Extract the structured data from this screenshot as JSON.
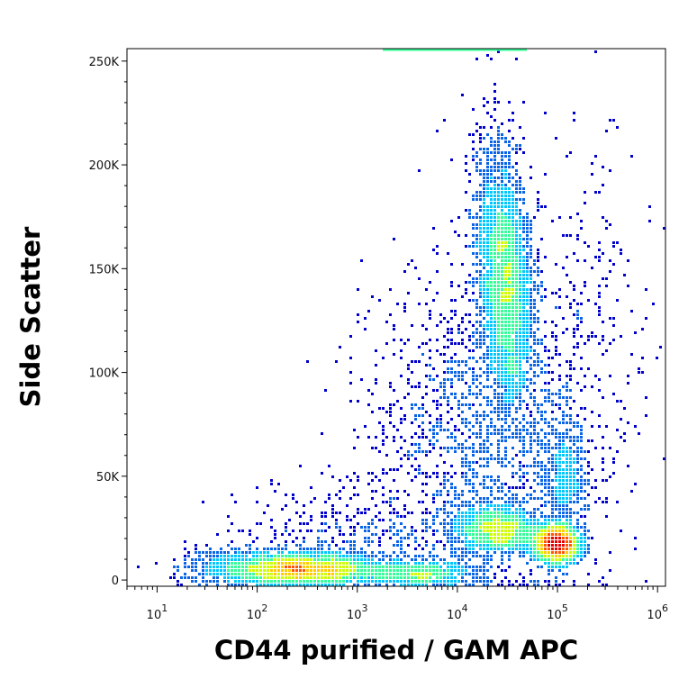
{
  "chart_data": {
    "type": "scatter",
    "title": "",
    "xlabel": "CD44 purified / GAM APC",
    "ylabel": "Side Scatter",
    "x_scale": "log",
    "xlim": [
      5,
      1200000
    ],
    "ylim": [
      -3000,
      256000
    ],
    "grid": false,
    "x_ticks": [
      {
        "value": 10,
        "base": "10",
        "exp": "1"
      },
      {
        "value": 100,
        "base": "10",
        "exp": "2"
      },
      {
        "value": 1000,
        "base": "10",
        "exp": "3"
      },
      {
        "value": 10000,
        "base": "10",
        "exp": "4"
      },
      {
        "value": 100000,
        "base": "10",
        "exp": "5"
      },
      {
        "value": 1000000,
        "base": "10",
        "exp": "6"
      }
    ],
    "y_ticks": [
      {
        "value": 0,
        "label": "0"
      },
      {
        "value": 50000,
        "label": "50K"
      },
      {
        "value": 100000,
        "label": "100K"
      },
      {
        "value": 150000,
        "label": "150K"
      },
      {
        "value": 200000,
        "label": "200K"
      },
      {
        "value": 250000,
        "label": "250K"
      }
    ],
    "density_colormap": [
      "#0000cc",
      "#0a64e6",
      "#00c8ff",
      "#33ff99",
      "#ccff00",
      "#ffcc00",
      "#ff5500",
      "#e60000"
    ],
    "populations": [
      {
        "x_center": 250,
        "y_center": 5000,
        "points": 2600,
        "color_peak": "#e60000"
      },
      {
        "x_center": 4000,
        "y_center": 3000,
        "points": 700,
        "color_peak": "#33ff99"
      },
      {
        "x_center": 30000,
        "y_center": 145000,
        "points": 3200,
        "color_peak": "#ccff00"
      },
      {
        "x_center": 25000,
        "y_center": 24000,
        "points": 1300,
        "color_peak": "#ffcc00"
      },
      {
        "x_center": 100000,
        "y_center": 17000,
        "points": 1500,
        "color_peak": "#ff5500"
      },
      {
        "x_center": 120000,
        "y_center": 50000,
        "points": 500,
        "color_peak": "#00c8ff"
      }
    ]
  }
}
